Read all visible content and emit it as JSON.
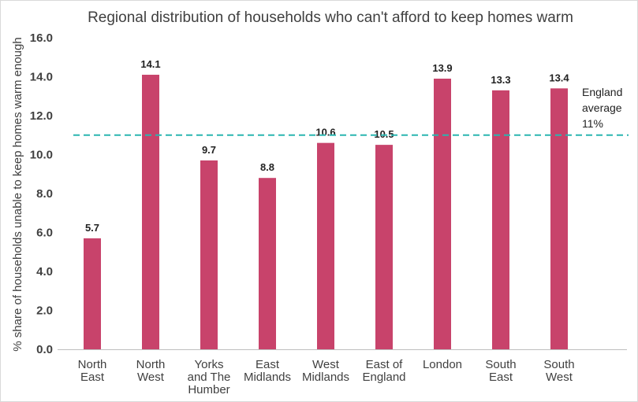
{
  "chart_data": {
    "type": "bar",
    "title": "Regional distribution of households who can't afford to keep homes warm",
    "ylabel": "% share of households unable to keep homes warm enough",
    "xlabel": "",
    "ylim": [
      0,
      16
    ],
    "yticks": [
      "0.0",
      "2.0",
      "4.0",
      "6.0",
      "8.0",
      "10.0",
      "12.0",
      "14.0",
      "16.0"
    ],
    "categories": [
      [
        "North",
        "East"
      ],
      [
        "North",
        "West"
      ],
      [
        "Yorks",
        "and The",
        "Humber"
      ],
      [
        "East",
        "Midlands"
      ],
      [
        "West",
        "Midlands"
      ],
      [
        "East of",
        "England"
      ],
      [
        "London"
      ],
      [
        "South",
        "East"
      ],
      [
        "South",
        "West"
      ]
    ],
    "values": [
      5.7,
      14.1,
      9.7,
      8.8,
      10.6,
      10.5,
      13.9,
      13.3,
      13.4
    ],
    "value_labels": [
      "5.7",
      "14.1",
      "9.7",
      "8.8",
      "10.6",
      "10.5",
      "13.9",
      "13.3",
      "13.4"
    ],
    "reference_line": {
      "value": 11,
      "label_lines": [
        "England",
        "average",
        "11%"
      ]
    },
    "colors": {
      "bar": "#c8436b",
      "reference": "#2ab5b0",
      "axis": "#bfbfbf"
    }
  }
}
